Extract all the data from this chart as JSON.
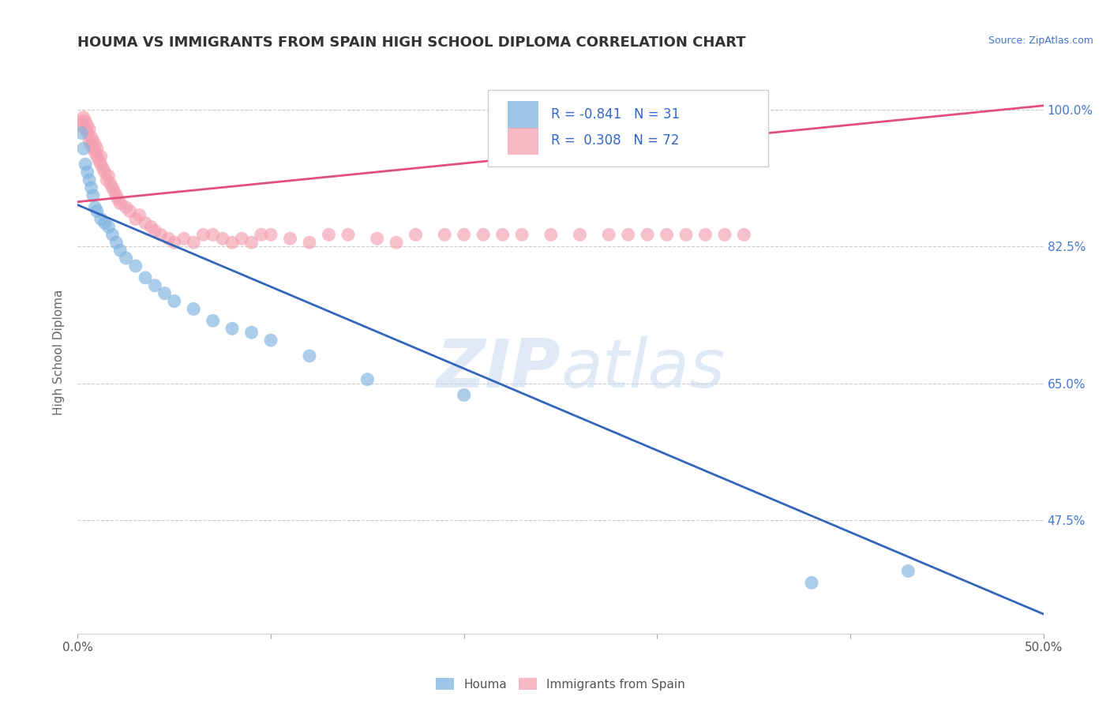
{
  "title": "HOUMA VS IMMIGRANTS FROM SPAIN HIGH SCHOOL DIPLOMA CORRELATION CHART",
  "source_text": "Source: ZipAtlas.com",
  "ylabel": "High School Diploma",
  "xlim": [
    0.0,
    0.5
  ],
  "ylim": [
    0.33,
    1.05
  ],
  "xticks": [
    0.0,
    0.1,
    0.2,
    0.3,
    0.4,
    0.5
  ],
  "xticklabels": [
    "0.0%",
    "",
    "",
    "",
    "",
    "50.0%"
  ],
  "ytick_right_vals": [
    0.475,
    0.65,
    0.825,
    1.0
  ],
  "ytick_right_labels": [
    "47.5%",
    "65.0%",
    "82.5%",
    "100.0%"
  ],
  "grid_color": "#cccccc",
  "background_color": "#ffffff",
  "houma_color": "#7fb3e0",
  "spain_color": "#f4a0b0",
  "houma_trend_color": "#3366bb",
  "spain_trend_color": "#e0507a",
  "R_houma": -0.841,
  "N_houma": 31,
  "R_spain": 0.308,
  "N_spain": 72,
  "legend_label_houma": "Houma",
  "legend_label_spain": "Immigrants from Spain",
  "houma_trend_x0": 0.0,
  "houma_trend_y0": 0.878,
  "houma_trend_x1": 0.5,
  "houma_trend_y1": 0.355,
  "spain_trend_x0": 0.0,
  "spain_trend_y0": 0.882,
  "spain_trend_x1": 0.5,
  "spain_trend_y1": 1.005,
  "houma_x": [
    0.002,
    0.003,
    0.004,
    0.005,
    0.006,
    0.007,
    0.008,
    0.009,
    0.01,
    0.012,
    0.014,
    0.016,
    0.018,
    0.02,
    0.022,
    0.025,
    0.03,
    0.035,
    0.04,
    0.045,
    0.05,
    0.06,
    0.07,
    0.08,
    0.09,
    0.1,
    0.12,
    0.15,
    0.2,
    0.38,
    0.43
  ],
  "houma_y": [
    0.97,
    0.95,
    0.93,
    0.92,
    0.91,
    0.9,
    0.89,
    0.875,
    0.87,
    0.86,
    0.855,
    0.85,
    0.84,
    0.83,
    0.82,
    0.81,
    0.8,
    0.785,
    0.775,
    0.765,
    0.755,
    0.745,
    0.73,
    0.72,
    0.715,
    0.705,
    0.685,
    0.655,
    0.635,
    0.395,
    0.41
  ],
  "spain_x": [
    0.001,
    0.002,
    0.003,
    0.004,
    0.004,
    0.005,
    0.005,
    0.006,
    0.006,
    0.007,
    0.007,
    0.008,
    0.008,
    0.009,
    0.009,
    0.01,
    0.01,
    0.011,
    0.012,
    0.012,
    0.013,
    0.014,
    0.015,
    0.016,
    0.017,
    0.018,
    0.019,
    0.02,
    0.021,
    0.022,
    0.025,
    0.027,
    0.03,
    0.032,
    0.035,
    0.038,
    0.04,
    0.043,
    0.047,
    0.05,
    0.055,
    0.06,
    0.065,
    0.07,
    0.075,
    0.08,
    0.085,
    0.09,
    0.095,
    0.1,
    0.11,
    0.12,
    0.13,
    0.14,
    0.155,
    0.165,
    0.175,
    0.19,
    0.2,
    0.21,
    0.22,
    0.23,
    0.245,
    0.26,
    0.275,
    0.285,
    0.295,
    0.305,
    0.315,
    0.325,
    0.335,
    0.345
  ],
  "spain_y": [
    0.98,
    0.985,
    0.99,
    0.975,
    0.985,
    0.97,
    0.98,
    0.96,
    0.975,
    0.955,
    0.965,
    0.95,
    0.96,
    0.945,
    0.955,
    0.94,
    0.95,
    0.935,
    0.93,
    0.94,
    0.925,
    0.92,
    0.91,
    0.915,
    0.905,
    0.9,
    0.895,
    0.89,
    0.885,
    0.88,
    0.875,
    0.87,
    0.86,
    0.865,
    0.855,
    0.85,
    0.845,
    0.84,
    0.835,
    0.83,
    0.835,
    0.83,
    0.84,
    0.84,
    0.835,
    0.83,
    0.835,
    0.83,
    0.84,
    0.84,
    0.835,
    0.83,
    0.84,
    0.84,
    0.835,
    0.83,
    0.84,
    0.84,
    0.84,
    0.84,
    0.84,
    0.84,
    0.84,
    0.84,
    0.84,
    0.84,
    0.84,
    0.84,
    0.84,
    0.84,
    0.84,
    0.84
  ]
}
